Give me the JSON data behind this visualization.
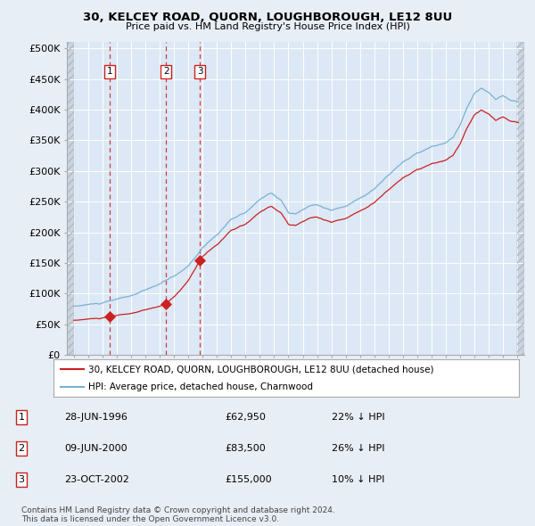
{
  "title": "30, KELCEY ROAD, QUORN, LOUGHBOROUGH, LE12 8UU",
  "subtitle": "Price paid vs. HM Land Registry's House Price Index (HPI)",
  "background_color": "#e8eef5",
  "plot_bg_color": "#dce8f5",
  "hatch_bg_color": "#c8d4e0",
  "legend_entries": [
    "30, KELCEY ROAD, QUORN, LOUGHBOROUGH, LE12 8UU (detached house)",
    "HPI: Average price, detached house, Charnwood"
  ],
  "sale_points": [
    {
      "label": "1",
      "date_num": 1996.49,
      "price": 62950
    },
    {
      "label": "2",
      "date_num": 2000.44,
      "price": 83500
    },
    {
      "label": "3",
      "date_num": 2002.81,
      "price": 155000
    }
  ],
  "footnote": "Contains HM Land Registry data © Crown copyright and database right 2024.\nThis data is licensed under the Open Government Licence v3.0.",
  "ylim": [
    0,
    510000
  ],
  "xlim": [
    1993.5,
    2025.5
  ],
  "yticks": [
    0,
    50000,
    100000,
    150000,
    200000,
    250000,
    300000,
    350000,
    400000,
    450000,
    500000
  ],
  "ytick_labels": [
    "£0",
    "£50K",
    "£100K",
    "£150K",
    "£200K",
    "£250K",
    "£300K",
    "£350K",
    "£400K",
    "£450K",
    "£500K"
  ],
  "xticks": [
    1994,
    1995,
    1996,
    1997,
    1998,
    1999,
    2000,
    2001,
    2002,
    2003,
    2004,
    2005,
    2006,
    2007,
    2008,
    2009,
    2010,
    2011,
    2012,
    2013,
    2014,
    2015,
    2016,
    2017,
    2018,
    2019,
    2020,
    2021,
    2022,
    2023,
    2024,
    2025
  ],
  "table_rows": [
    {
      "num": "1",
      "date": "28-JUN-1996",
      "price": "£62,950",
      "hpi": "22% ↓ HPI"
    },
    {
      "num": "2",
      "date": "09-JUN-2000",
      "price": "£83,500",
      "hpi": "26% ↓ HPI"
    },
    {
      "num": "3",
      "date": "23-OCT-2002",
      "price": "£155,000",
      "hpi": "10% ↓ HPI"
    }
  ]
}
